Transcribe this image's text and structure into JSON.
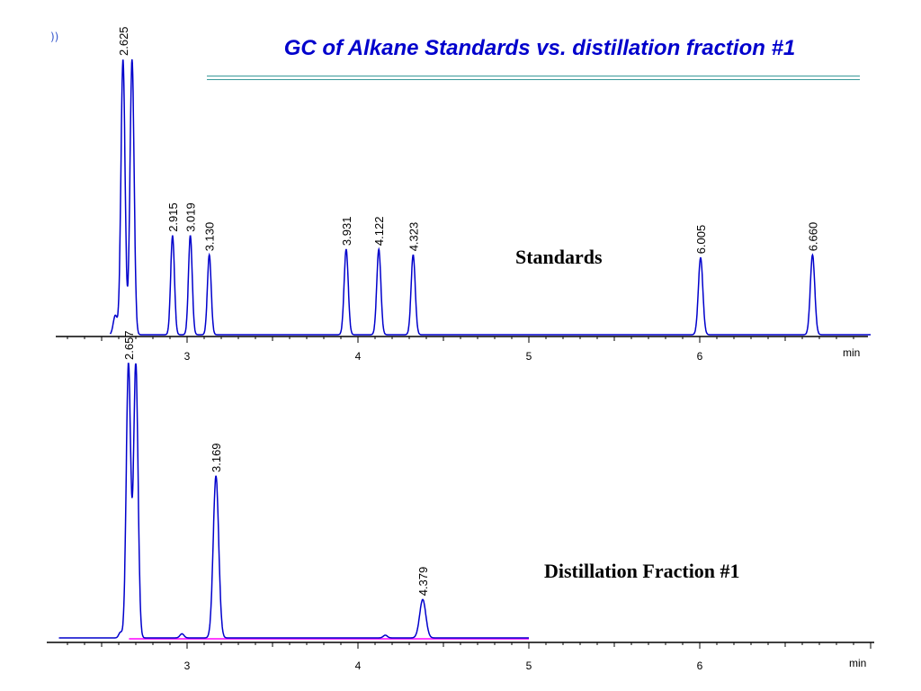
{
  "slide": {
    "title": "GC of Alkane Standards vs. distillation fraction #1",
    "sound_icon": "speaker-icon",
    "sound_glyph": "))"
  },
  "colors": {
    "trace": "#0000CC",
    "baseline": "#FF00FF",
    "axis": "#000000",
    "title": "#0000CC"
  },
  "chart_data": [
    {
      "type": "line",
      "title": "Standards",
      "xlabel": "min",
      "xlim": [
        2.25,
        7.0
      ],
      "ylim": [
        0,
        100
      ],
      "x_ticks": [
        3,
        4,
        5,
        6
      ],
      "grid": false,
      "peaks": [
        {
          "rt": 2.58,
          "height": 7,
          "width": 0.012,
          "label": ""
        },
        {
          "rt": 2.625,
          "height": 100,
          "width": 0.012,
          "label": "2.625"
        },
        {
          "rt": 2.678,
          "height": 100,
          "width": 0.012,
          "label": ""
        },
        {
          "rt": 2.915,
          "height": 36,
          "width": 0.011,
          "label": "2.915"
        },
        {
          "rt": 3.019,
          "height": 36,
          "width": 0.011,
          "label": "3.019"
        },
        {
          "rt": 3.13,
          "height": 29,
          "width": 0.011,
          "label": "3.130"
        },
        {
          "rt": 3.931,
          "height": 31,
          "width": 0.012,
          "label": "3.931"
        },
        {
          "rt": 4.122,
          "height": 31,
          "width": 0.012,
          "label": "4.122"
        },
        {
          "rt": 4.323,
          "height": 29,
          "width": 0.012,
          "label": "4.323"
        },
        {
          "rt": 6.005,
          "height": 28,
          "width": 0.013,
          "label": "6.005"
        },
        {
          "rt": 6.66,
          "height": 29,
          "width": 0.013,
          "label": "6.660"
        }
      ]
    },
    {
      "type": "line",
      "title": "Distillation Fraction #1",
      "xlabel": "min",
      "xlim": [
        2.25,
        7.0
      ],
      "ylim": [
        0,
        100
      ],
      "x_ticks": [
        3,
        4,
        5,
        6
      ],
      "grid": false,
      "baseline_range": [
        2.66,
        5.0
      ],
      "trace_range": [
        2.25,
        5.0
      ],
      "peaks": [
        {
          "rt": 2.61,
          "height": 2,
          "width": 0.01,
          "label": ""
        },
        {
          "rt": 2.657,
          "height": 100,
          "width": 0.013,
          "label": "2.657"
        },
        {
          "rt": 2.7,
          "height": 100,
          "width": 0.013,
          "label": ""
        },
        {
          "rt": 2.97,
          "height": 1.5,
          "width": 0.012,
          "label": ""
        },
        {
          "rt": 3.169,
          "height": 59,
          "width": 0.016,
          "label": "3.169"
        },
        {
          "rt": 4.16,
          "height": 1,
          "width": 0.012,
          "label": ""
        },
        {
          "rt": 4.379,
          "height": 14,
          "width": 0.018,
          "label": "4.379"
        }
      ]
    }
  ]
}
